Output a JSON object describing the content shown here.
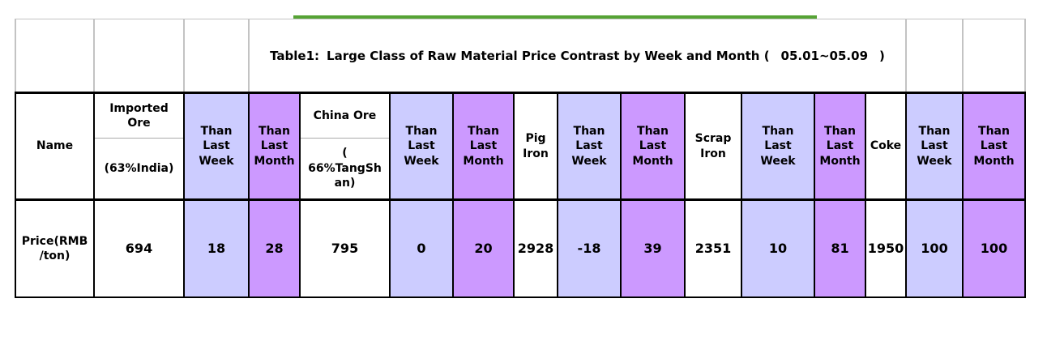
{
  "title": {
    "prefix": "Table1:",
    "main": "Large Class of Raw Material Price Contrast by Week and Month (",
    "date": "05.01~05.09",
    "close": ")"
  },
  "table": {
    "row_label": "Price(RMB\n/ton)",
    "columns": [
      {
        "header": "Name",
        "value": "Price(RMB\n/ton)",
        "style": "white"
      },
      {
        "header_top": "Imported\nOre",
        "header_bottom": "(63%India)",
        "value": "694",
        "style": "white"
      },
      {
        "header": "Than\nLast\nWeek",
        "value": "18",
        "style": "week"
      },
      {
        "header": "Than\nLast\nMonth",
        "value": "28",
        "style": "month"
      },
      {
        "header_top": "China Ore",
        "header_bottom": "(\n66%TangSh\nan)",
        "value": "795",
        "style": "white"
      },
      {
        "header": "Than\nLast\nWeek",
        "value": "0",
        "style": "week"
      },
      {
        "header": "Than\nLast\nMonth",
        "value": "20",
        "style": "month"
      },
      {
        "header": "Pig\nIron",
        "value": "2928",
        "style": "white"
      },
      {
        "header": "Than\nLast\nWeek",
        "value": "-18",
        "style": "week"
      },
      {
        "header": "Than\nLast\nMonth",
        "value": "39",
        "style": "month"
      },
      {
        "header": "Scrap\nIron",
        "value": "2351",
        "style": "white"
      },
      {
        "header": "Than\nLast\nWeek",
        "value": "10",
        "style": "week"
      },
      {
        "header": "Than\nLast\nMonth",
        "value": "81",
        "style": "month"
      },
      {
        "header": "Coke",
        "value": "1950",
        "style": "white"
      },
      {
        "header": "Than\nLast\nWeek",
        "value": "100",
        "style": "week"
      },
      {
        "header": "Than\nLast\nMonth",
        "value": "100",
        "style": "month"
      }
    ]
  },
  "colors": {
    "week_bg": "#ccccff",
    "month_bg": "#cc99ff",
    "accent_green": "#56a335",
    "title_grid_gray": "#c3c3c3",
    "table_border": "#000000"
  },
  "chart_data": {
    "type": "table",
    "title": "Table1: Large Class of Raw Material Price Contrast by Week and Month (05.01~05.09)",
    "columns": [
      "Name",
      "Imported Ore (63%India)",
      "Than Last Week",
      "Than Last Month",
      "China Ore (66%TangShan)",
      "Than Last Week",
      "Than Last Month",
      "Pig Iron",
      "Than Last Week",
      "Than Last Month",
      "Scrap Iron",
      "Than Last Week",
      "Than Last Month",
      "Coke",
      "Than Last Week",
      "Than Last Month"
    ],
    "rows": [
      [
        "Price(RMB/ton)",
        694,
        18,
        28,
        795,
        0,
        20,
        2928,
        -18,
        39,
        2351,
        10,
        81,
        1950,
        100,
        100
      ]
    ]
  }
}
